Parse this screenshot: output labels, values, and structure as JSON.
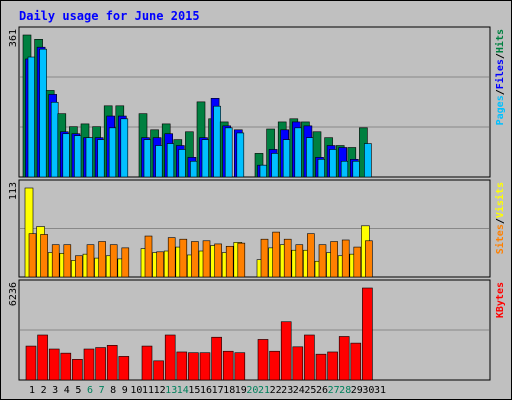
{
  "title": "Daily usage for June 2015",
  "colors": {
    "background": "#c0c0c0",
    "title": "#0000ff",
    "hits": "#008040",
    "files": "#0000ff",
    "pages": "#00c0ff",
    "visits": "#ff8000",
    "sites": "#ffff00",
    "kbytes": "#ff0000",
    "weekend_day": "#00805c",
    "weekday": "#000000"
  },
  "chart_data": [
    {
      "type": "bar",
      "title": "",
      "ymax_label": "361",
      "legend": [
        "Pages",
        "Files",
        "Hits"
      ],
      "ylim": [
        0,
        361
      ],
      "grid": true,
      "legend_position": "right",
      "categories": [
        "1",
        "2",
        "3",
        "4",
        "5",
        "6",
        "7",
        "8",
        "9",
        "10",
        "11",
        "12",
        "13",
        "14",
        "15",
        "16",
        "17",
        "18",
        "19",
        "20",
        "21",
        "22",
        "23",
        "24",
        "25",
        "26",
        "27",
        "28",
        "29",
        "30",
        "31"
      ],
      "series": [
        {
          "name": "Hits",
          "values": [
            361,
            350,
            220,
            161,
            128,
            135,
            128,
            181,
            181,
            0,
            161,
            120,
            135,
            95,
            115,
            191,
            148,
            140,
            0,
            0,
            60,
            122,
            140,
            148,
            140,
            115,
            100,
            80,
            75,
            125,
            0
          ]
        },
        {
          "name": "Files",
          "values": [
            300,
            330,
            210,
            115,
            110,
            100,
            100,
            155,
            155,
            0,
            100,
            100,
            110,
            80,
            50,
            100,
            200,
            130,
            120,
            0,
            30,
            70,
            120,
            140,
            130,
            50,
            80,
            75,
            45,
            0,
            0
          ]
        },
        {
          "name": "Pages",
          "values": [
            305,
            325,
            190,
            110,
            105,
            100,
            95,
            125,
            148,
            0,
            95,
            80,
            85,
            70,
            40,
            95,
            180,
            125,
            112,
            0,
            30,
            60,
            95,
            125,
            100,
            45,
            70,
            40,
            40,
            85,
            0
          ]
        }
      ]
    },
    {
      "type": "bar",
      "title": "",
      "ymax_label": "113",
      "legend": [
        "Sites",
        "Visits"
      ],
      "ylim": [
        0,
        113
      ],
      "grid": true,
      "legend_position": "right",
      "categories": [
        "1",
        "2",
        "3",
        "4",
        "5",
        "6",
        "7",
        "8",
        "9",
        "10",
        "11",
        "12",
        "13",
        "14",
        "15",
        "16",
        "17",
        "18",
        "19",
        "20",
        "21",
        "22",
        "23",
        "24",
        "25",
        "26",
        "27",
        "28",
        "29",
        "30",
        "31"
      ],
      "series": [
        {
          "name": "Visits",
          "values": [
            55,
            54,
            41,
            41,
            27,
            41,
            45,
            41,
            37,
            0,
            52,
            32,
            50,
            48,
            45,
            46,
            42,
            39,
            43,
            0,
            48,
            57,
            48,
            41,
            55,
            41,
            45,
            47,
            38,
            46,
            0
          ],
          "sites_values": [
            113,
            64,
            31,
            30,
            21,
            29,
            24,
            27,
            23,
            0,
            36,
            31,
            33,
            38,
            28,
            33,
            40,
            31,
            44,
            0,
            22,
            37,
            41,
            34,
            34,
            20,
            31,
            27,
            29,
            65,
            0
          ]
        }
      ]
    },
    {
      "type": "bar",
      "title": "",
      "ymax_label": "6236",
      "legend": [
        "KBytes"
      ],
      "ylim": [
        0,
        6236
      ],
      "grid": true,
      "legend_position": "right",
      "categories": [
        "1",
        "2",
        "3",
        "4",
        "5",
        "6",
        "7",
        "8",
        "9",
        "10",
        "11",
        "12",
        "13",
        "14",
        "15",
        "16",
        "17",
        "18",
        "19",
        "20",
        "21",
        "22",
        "23",
        "24",
        "25",
        "26",
        "27",
        "28",
        "29",
        "30",
        "31"
      ],
      "series": [
        {
          "name": "KBytes",
          "values": [
            2300,
            3050,
            2100,
            1820,
            1400,
            2100,
            2200,
            2350,
            1600,
            0,
            2300,
            1300,
            3050,
            1900,
            1850,
            1850,
            2900,
            1950,
            1850,
            0,
            2750,
            1950,
            3950,
            2250,
            3050,
            1750,
            1900,
            2950,
            2500,
            6236,
            0
          ]
        }
      ]
    }
  ],
  "day_labels": [
    "1",
    "2",
    "3",
    "4",
    "5",
    "6",
    "7",
    "8",
    "9",
    "10",
    "11",
    "12",
    "13",
    "14",
    "15",
    "16",
    "17",
    "18",
    "19",
    "20",
    "21",
    "22",
    "23",
    "24",
    "25",
    "26",
    "27",
    "28",
    "29",
    "30",
    "31"
  ],
  "weekend_days": [
    "6",
    "7",
    "13",
    "14",
    "20",
    "21",
    "27",
    "28"
  ]
}
